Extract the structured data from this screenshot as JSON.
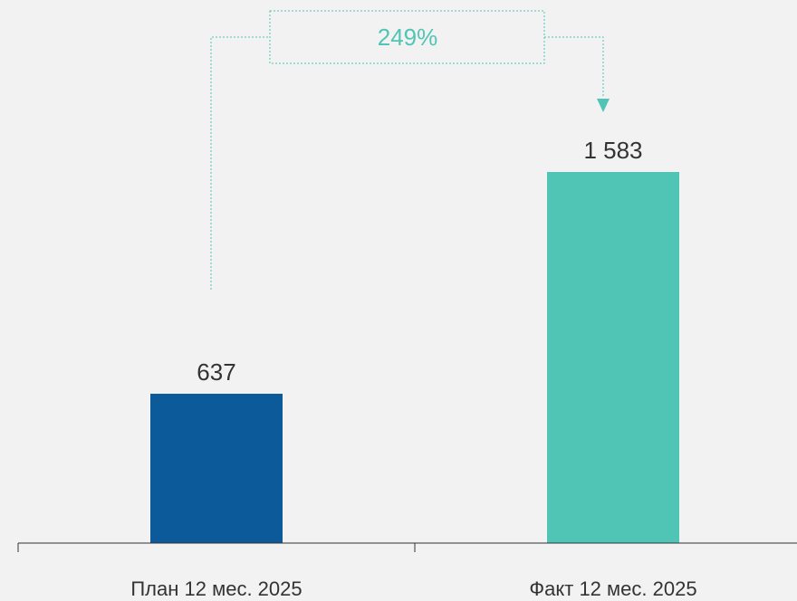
{
  "chart_data": {
    "type": "bar",
    "categories": [
      "План 12 мес. 2025",
      "Факт 12 мес. 2025"
    ],
    "values": [
      637,
      1583
    ],
    "value_labels": [
      "637",
      "1 583"
    ],
    "colors": [
      "#0d5a9a",
      "#50c5b5"
    ],
    "ylim": [
      0,
      2000
    ],
    "annotation": "249%"
  }
}
